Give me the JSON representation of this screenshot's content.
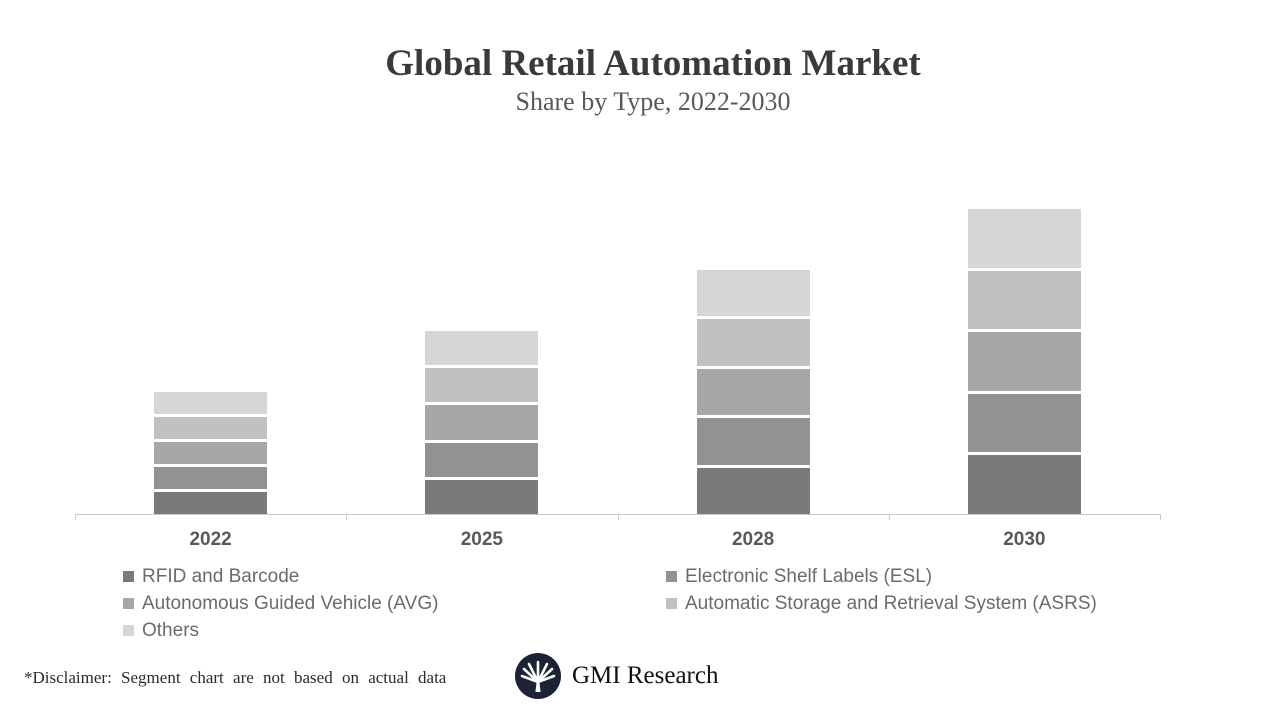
{
  "header": {
    "title": "Global Retail Automation Market",
    "subtitle": "Share by Type, 2022-2030"
  },
  "chart_data": {
    "type": "stacked-bar",
    "title": "Global Retail Automation Market",
    "subtitle": "Share by Type, 2022-2030",
    "categories": [
      "2022",
      "2025",
      "2028",
      "2030"
    ],
    "series": [
      {
        "name": "RFID and Barcode",
        "color": "#7a7a7a",
        "values": [
          0.4,
          0.6,
          0.8,
          1.0
        ]
      },
      {
        "name": "Electronic Shelf Labels (ESL)",
        "color": "#929292",
        "values": [
          0.4,
          0.6,
          0.8,
          1.0
        ]
      },
      {
        "name": "Autonomous Guided Vehicle (AVG)",
        "color": "#a7a7a7",
        "values": [
          0.4,
          0.6,
          0.8,
          1.0
        ]
      },
      {
        "name": "Automatic Storage and Retrieval System (ASRS)",
        "color": "#c1c1c1",
        "values": [
          0.4,
          0.6,
          0.8,
          1.0
        ]
      },
      {
        "name": "Others",
        "color": "#d6d6d6",
        "values": [
          0.4,
          0.6,
          0.8,
          1.0
        ]
      }
    ],
    "bar_totals": [
      2.0,
      3.0,
      4.0,
      5.0
    ],
    "stack_order_bottom_to_top": [
      "RFID and Barcode",
      "Electronic Shelf Labels (ESL)",
      "Autonomous Guided Vehicle (AVG)",
      "Automatic Storage and Retrieval System (ASRS)",
      "Others"
    ],
    "xlabel": "",
    "ylabel": "",
    "ylim": [
      0,
      5.5
    ],
    "grid": false,
    "y_axis_labels_visible": false,
    "legend_position": "bottom-two-columns",
    "axis_color": "#c9c9c9",
    "label_color": "#595959"
  },
  "legend": {
    "columns": [
      [
        {
          "label": "RFID and Barcode",
          "color": "#7a7a7a"
        },
        {
          "label": "Autonomous Guided Vehicle (AVG)",
          "color": "#a7a7a7"
        },
        {
          "label": "Others",
          "color": "#d6d6d6"
        }
      ],
      [
        {
          "label": "Electronic Shelf Labels (ESL)",
          "color": "#929292"
        },
        {
          "label": "Automatic Storage and Retrieval System (ASRS)",
          "color": "#c1c1c1"
        }
      ]
    ]
  },
  "footer": {
    "disclaimer": "*Disclaimer: Segment chart are not based on actual data",
    "logo_text": "GMI Research",
    "logo_icon": "palm-fan-in-circle",
    "logo_circle_color": "#1b2335"
  }
}
